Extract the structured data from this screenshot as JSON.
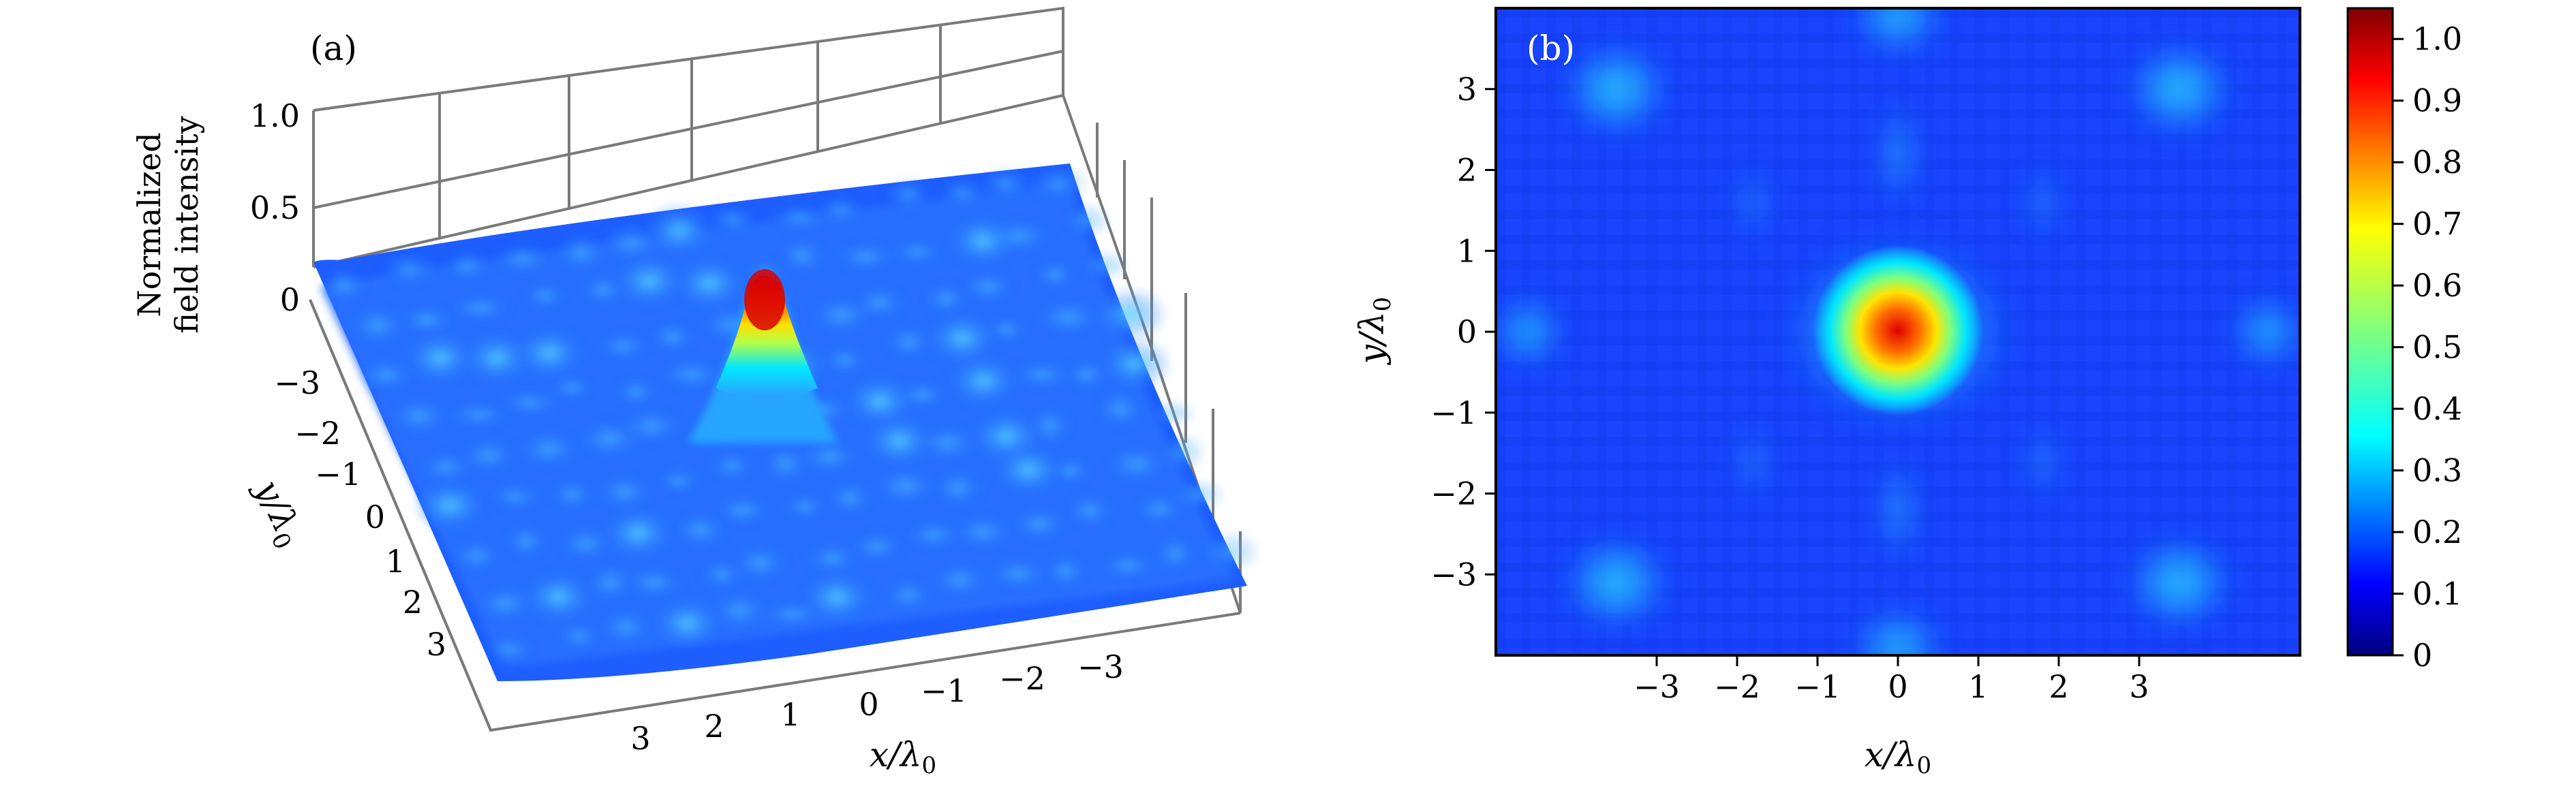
{
  "chart_data": [
    {
      "panel": "(a)",
      "type": "surface",
      "zlabel_lines": [
        "Normalized",
        "field intensity"
      ],
      "xlabel": "x/λ0",
      "ylabel": "y/λ0",
      "xlim": [
        -4.5,
        4.5
      ],
      "ylim": [
        -4.5,
        4.5
      ],
      "zlim": [
        0,
        1.0
      ],
      "z_ticks": [
        "0",
        "0.5",
        "1.0"
      ],
      "x_ticks": [
        "3",
        "2",
        "1",
        "0",
        "−1",
        "−2",
        "−3"
      ],
      "y_ticks": [
        "−3",
        "−2",
        "−1",
        "0",
        "1",
        "2",
        "3"
      ],
      "peak": {
        "x": 0,
        "y": 0,
        "value": 1.0
      },
      "background_level": 0.15,
      "colormap": "jet"
    },
    {
      "panel": "(b)",
      "type": "heatmap",
      "xlabel": "x/λ0",
      "ylabel": "y/λ0",
      "xlim": [
        -5,
        5
      ],
      "ylim": [
        -4,
        4
      ],
      "x_ticks": [
        "−3",
        "−2",
        "−1",
        "0",
        "1",
        "2",
        "3"
      ],
      "y_ticks": [
        "3",
        "2",
        "1",
        "0",
        "−1",
        "−2",
        "−3"
      ],
      "colorbar_ticks": [
        "1.0",
        "0.9",
        "0.8",
        "0.7",
        "0.6",
        "0.5",
        "0.4",
        "0.3",
        "0.2",
        "0.1",
        "0"
      ],
      "colorbar_range": [
        0,
        1.05
      ],
      "colormap": "jet",
      "peak": {
        "x": 0,
        "y": 0,
        "value": 1.0
      },
      "background_level": 0.15
    }
  ]
}
